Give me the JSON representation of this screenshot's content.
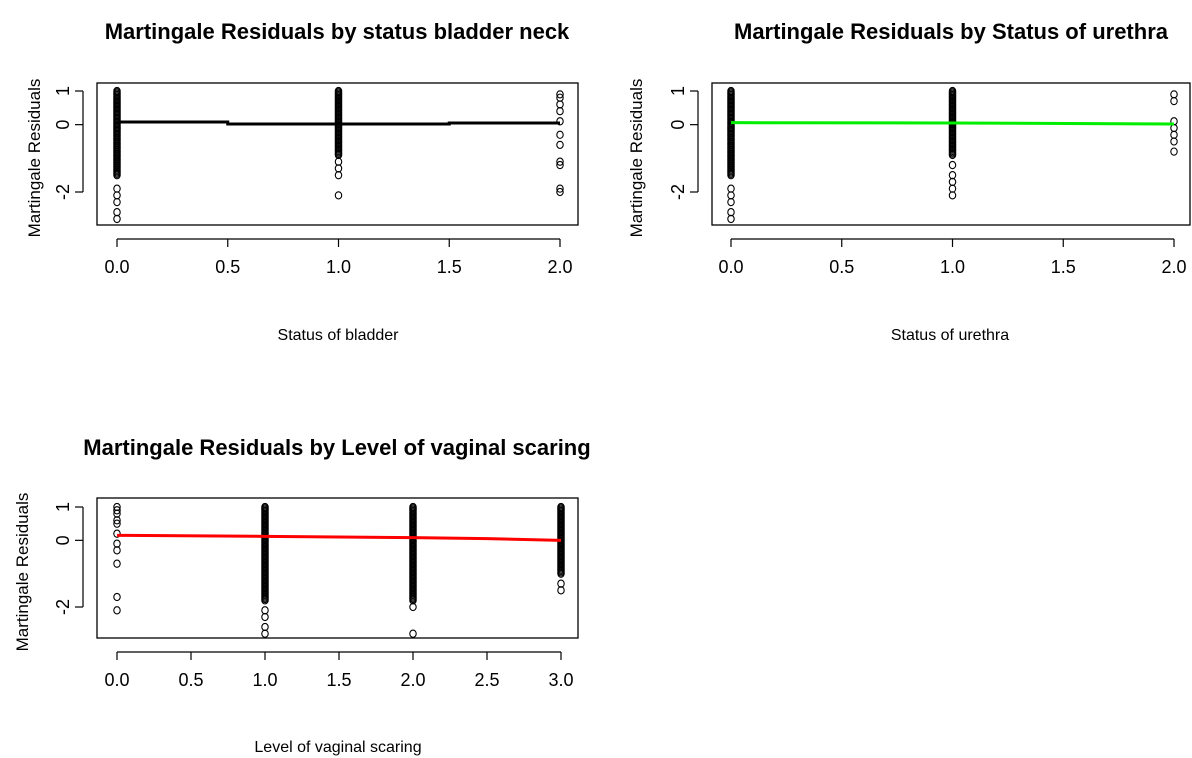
{
  "chart_data": [
    {
      "type": "scatter",
      "title": "Martingale Residuals by status bladder neck",
      "xlabel": "Status of bladder",
      "ylabel": "Martingale Residuals",
      "xlim": [
        0,
        2
      ],
      "ylim": [
        -3,
        1
      ],
      "xticks": [
        "0.0",
        "0.5",
        "1.0",
        "1.5",
        "2.0"
      ],
      "xtick_values": [
        0,
        0.5,
        1,
        1.5,
        2
      ],
      "yticks": [
        "-2",
        "0",
        "1"
      ],
      "ytick_values": [
        -2,
        0,
        1
      ],
      "smooth_color": "#000000",
      "groups": [
        {
          "x": 0,
          "dense_range": [
            -1.5,
            1.0
          ],
          "outliers": [
            -1.9,
            -2.1,
            -2.3,
            -2.6,
            -2.8
          ]
        },
        {
          "x": 1,
          "dense_range": [
            -0.9,
            1.0
          ],
          "outliers": [
            -1.1,
            -1.3,
            -1.5,
            -2.1
          ]
        },
        {
          "x": 2,
          "dense_range": null,
          "outliers": [
            0.9,
            0.8,
            0.6,
            0.4,
            0.1,
            -0.3,
            -0.6,
            -1.1,
            -1.2,
            -1.9,
            -2.0
          ]
        }
      ],
      "smooth": {
        "x": [
          0,
          0.5,
          0.5,
          1.5,
          1.5,
          2
        ],
        "y": [
          0.08,
          0.08,
          0.02,
          0.02,
          0.05,
          0.05
        ]
      }
    },
    {
      "type": "scatter",
      "title": "Martingale Residuals by Status of urethra",
      "xlabel": "Status of urethra",
      "ylabel": "Martingale Residuals",
      "xlim": [
        0,
        2
      ],
      "ylim": [
        -3,
        1
      ],
      "xticks": [
        "0.0",
        "0.5",
        "1.0",
        "1.5",
        "2.0"
      ],
      "xtick_values": [
        0,
        0.5,
        1,
        1.5,
        2
      ],
      "yticks": [
        "-2",
        "0",
        "1"
      ],
      "ytick_values": [
        -2,
        0,
        1
      ],
      "smooth_color": "#00ee00",
      "groups": [
        {
          "x": 0,
          "dense_range": [
            -1.5,
            1.0
          ],
          "outliers": [
            -1.9,
            -2.1,
            -2.3,
            -2.6,
            -2.8
          ]
        },
        {
          "x": 1,
          "dense_range": [
            -0.9,
            1.0
          ],
          "outliers": [
            -1.2,
            -1.5,
            -1.7,
            -1.9,
            -2.1
          ]
        },
        {
          "x": 2,
          "dense_range": null,
          "outliers": [
            0.9,
            0.7,
            0.1,
            -0.1,
            -0.3,
            -0.5,
            -0.8
          ]
        }
      ],
      "smooth": {
        "x": [
          0,
          1,
          2
        ],
        "y": [
          0.06,
          0.05,
          0.02
        ]
      }
    },
    {
      "type": "scatter",
      "title": "Martingale Residuals by Level of vaginal scaring",
      "xlabel": "Level of vaginal scaring",
      "ylabel": "Martingale Residuals",
      "xlim": [
        0,
        3
      ],
      "ylim": [
        -3,
        1
      ],
      "xticks": [
        "0.0",
        "0.5",
        "1.0",
        "1.5",
        "2.0",
        "2.5",
        "3.0"
      ],
      "xtick_values": [
        0,
        0.5,
        1,
        1.5,
        2,
        2.5,
        3
      ],
      "yticks": [
        "-2",
        "0",
        "1"
      ],
      "ytick_values": [
        -2,
        0,
        1
      ],
      "smooth_color": "#ff0000",
      "groups": [
        {
          "x": 0,
          "dense_range": null,
          "outliers": [
            1.0,
            0.9,
            0.8,
            0.6,
            0.5,
            0.2,
            -0.1,
            -0.3,
            -0.7,
            -1.7,
            -2.1
          ]
        },
        {
          "x": 1,
          "dense_range": [
            -1.8,
            1.0
          ],
          "outliers": [
            -2.1,
            -2.3,
            -2.6,
            -2.8
          ]
        },
        {
          "x": 2,
          "dense_range": [
            -1.8,
            1.0
          ],
          "outliers": [
            -2.0,
            -2.8
          ]
        },
        {
          "x": 3,
          "dense_range": [
            -1.0,
            1.0
          ],
          "outliers": [
            -1.3,
            -1.5
          ]
        }
      ],
      "smooth": {
        "x": [
          0,
          1,
          2,
          2.5,
          3
        ],
        "y": [
          0.15,
          0.12,
          0.08,
          0.05,
          0.0
        ]
      }
    }
  ]
}
